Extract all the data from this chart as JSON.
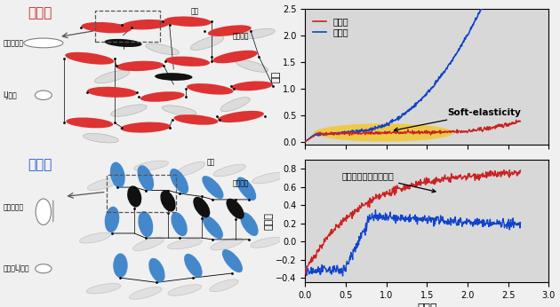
{
  "fig_width": 6.3,
  "fig_height": 3.46,
  "dpi": 100,
  "bg_color": "#f0f0f0",
  "stress_ylim": [
    -0.05,
    2.5
  ],
  "stress_yticks": [
    0.0,
    0.5,
    1.0,
    1.5,
    2.0,
    2.5
  ],
  "orient_ylim": [
    -0.45,
    0.9
  ],
  "orient_yticks": [
    -0.4,
    -0.2,
    0.0,
    0.2,
    0.4,
    0.6,
    0.8
  ],
  "xlim": [
    0,
    3.0
  ],
  "xticks": [
    0,
    0.5,
    1.0,
    1.5,
    2.0,
    2.5,
    3.0
  ],
  "xlabel": "ひずみ",
  "ylabel_stress": "応力",
  "ylabel_orient": "配向度",
  "legend_main": "主鎖型",
  "legend_side": "側鎖型",
  "color_main": "#cc2222",
  "color_side": "#1144cc",
  "soft_elasticity_label": "Soft-elasticity",
  "mesogen_label": "メソゲン基配向の進行",
  "title_main": "主鎖型",
  "title_side": "側鎖型",
  "soft_ellipse_color": "#f5c518",
  "soft_ellipse_alpha": 0.75,
  "panel_bg": "#d8d8d8"
}
